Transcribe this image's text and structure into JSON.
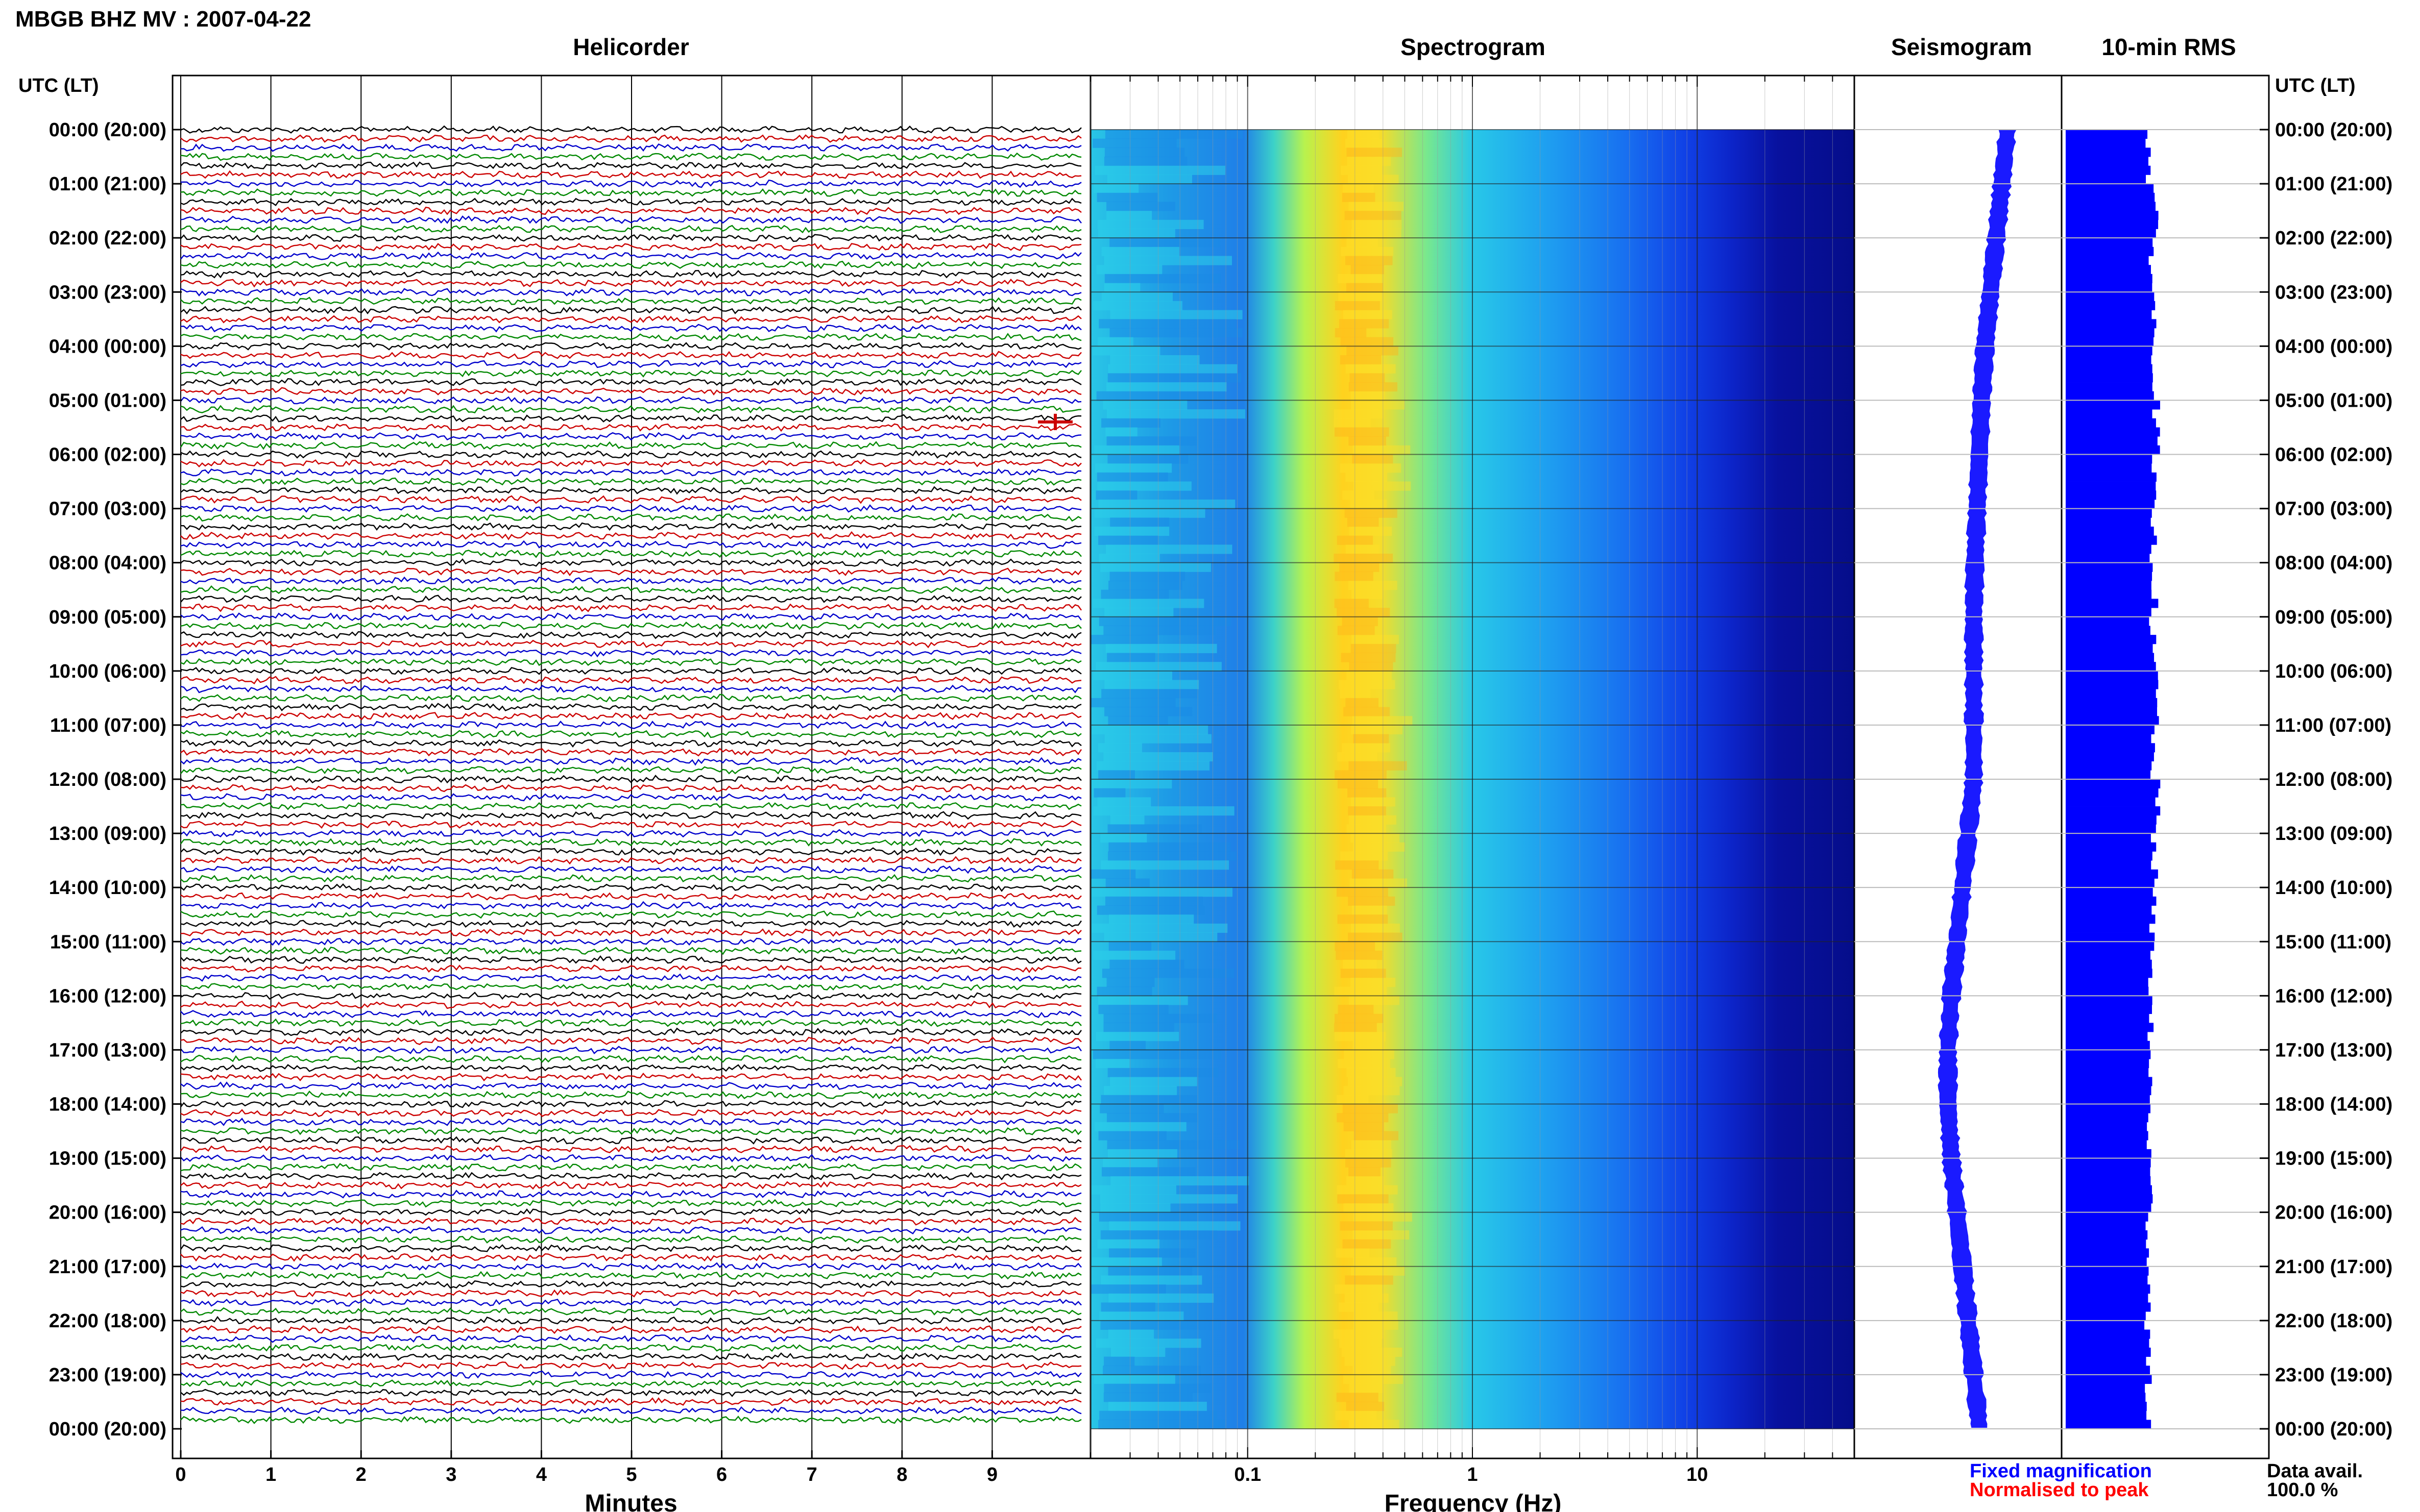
{
  "header": {
    "title": "MBGB BHZ MV : 2007-04-22"
  },
  "panels": {
    "helicorder": "Helicorder",
    "spectrogram": "Spectrogram",
    "seismogram": "Seismogram",
    "rms": "10-min RMS"
  },
  "axes": {
    "left_time_header": "UTC (LT)",
    "right_time_header": "UTC (LT)",
    "helicorder_xlabel": "Minutes",
    "spectrogram_xlabel": "Frequency (Hz)"
  },
  "legend": {
    "fixed": "Fixed magnification",
    "normalised": "Normalised to peak",
    "fixed_color": "#0000ff",
    "normalised_color": "#ff0000",
    "availability_label": "Data avail.",
    "availability_value": "100.0 %"
  },
  "chart_data": [
    {
      "type": "line",
      "title": "Helicorder",
      "xlabel": "Minutes",
      "ylabel": "UTC (LT)",
      "x_range": [
        0,
        10
      ],
      "x_ticks": [
        "0",
        "1",
        "2",
        "3",
        "4",
        "5",
        "6",
        "7",
        "8",
        "9"
      ],
      "rows_per_hour": 6,
      "row_minutes": 10,
      "trace_colors": [
        "#000000",
        "#cc0000",
        "#0000cc",
        "#008800"
      ],
      "y_ticks": [
        "00:00 (20:00)",
        "01:00 (21:00)",
        "02:00 (22:00)",
        "03:00 (23:00)",
        "04:00 (00:00)",
        "05:00 (01:00)",
        "06:00 (02:00)",
        "07:00 (03:00)",
        "08:00 (04:00)",
        "09:00 (05:00)",
        "10:00 (06:00)",
        "11:00 (07:00)",
        "12:00 (08:00)",
        "13:00 (09:00)",
        "14:00 (10:00)",
        "15:00 (11:00)",
        "16:00 (12:00)",
        "17:00 (13:00)",
        "18:00 (14:00)",
        "19:00 (15:00)",
        "20:00 (16:00)",
        "21:00 (17:00)",
        "22:00 (18:00)",
        "23:00 (19:00)",
        "00:00 (20:00)"
      ],
      "events": [
        {
          "hour": 5.4,
          "minute": 9.7,
          "color": "#cc0000"
        }
      ]
    },
    {
      "type": "heatmap",
      "title": "Spectrogram",
      "xlabel": "Frequency (Hz)",
      "x_scale": "log",
      "x_range": [
        0.02,
        50
      ],
      "x_ticks": [
        0.1,
        1,
        10
      ],
      "x_tick_labels": [
        "0.1",
        "1",
        "10"
      ],
      "peak_frequency_hz": 0.33,
      "colormap": [
        "#00008b",
        "#0000ff",
        "#0080ff",
        "#00e0ff",
        "#80ff80",
        "#ffff00",
        "#ffa000"
      ]
    },
    {
      "type": "area",
      "title": "Seismogram",
      "description_color": "#1a1aff",
      "centre_offset_by_hour": [
        0.35,
        0.3,
        0.25,
        0.2,
        0.15,
        0.12,
        0.1,
        0.08,
        0.06,
        0.05,
        0.05,
        0.05,
        0.05,
        0.0,
        -0.05,
        -0.1,
        -0.15,
        -0.18,
        -0.18,
        -0.15,
        -0.1,
        -0.05,
        0.0,
        0.05,
        0.1
      ]
    },
    {
      "type": "bar",
      "title": "10-min RMS",
      "orientation": "horizontal",
      "bar_color": "#0000ff",
      "rms_hourly_relative": [
        0.92,
        0.98,
        0.96,
        0.97,
        0.99,
        1.0,
        0.96,
        0.97,
        0.98,
        0.96,
        1.0,
        0.97,
        1.0,
        0.98,
        0.96,
        0.95,
        0.93,
        0.93,
        0.92,
        0.93,
        0.92,
        0.92,
        0.91,
        0.91
      ]
    }
  ]
}
